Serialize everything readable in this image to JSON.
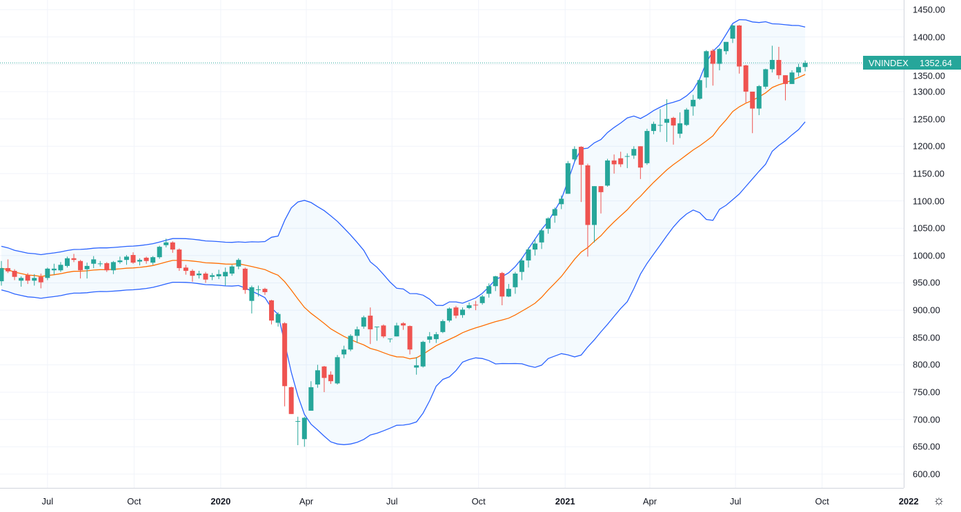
{
  "symbol": "VNINDEX",
  "last_price": "1352.64",
  "colors": {
    "up": "#26a69a",
    "down": "#ef5350",
    "bands": "#2962ff",
    "basis": "#ff6d00",
    "band_fill": "#2196f3",
    "grid": "#f0f3fa",
    "price_line": "#26a69a"
  },
  "icons": {
    "settings": "gear-icon"
  },
  "chart_data": {
    "type": "candlestick",
    "interval": "weekly",
    "indicator": {
      "name": "Bollinger Bands",
      "period": 20,
      "stddev": 2
    },
    "ylim": [
      580,
      1460
    ],
    "y_ticks": [
      "1450.00",
      "1400.00",
      "1350.00",
      "1300.00",
      "1250.00",
      "1200.00",
      "1150.00",
      "1100.00",
      "1050.00",
      "1000.00",
      "950.00",
      "900.00",
      "850.00",
      "800.00",
      "750.00",
      "700.00",
      "650.00",
      "600.00"
    ],
    "x_ticks": [
      {
        "label": "Jul",
        "date": "2019-07-01",
        "year": false
      },
      {
        "label": "Oct",
        "date": "2019-10-01",
        "year": false
      },
      {
        "label": "2020",
        "date": "2020-01-01",
        "year": true
      },
      {
        "label": "Apr",
        "date": "2020-04-01",
        "year": false
      },
      {
        "label": "Jul",
        "date": "2020-07-01",
        "year": false
      },
      {
        "label": "Oct",
        "date": "2020-10-01",
        "year": false
      },
      {
        "label": "2021",
        "date": "2021-01-01",
        "year": true
      },
      {
        "label": "Apr",
        "date": "2021-04-01",
        "year": false
      },
      {
        "label": "Jul",
        "date": "2021-07-01",
        "year": false
      },
      {
        "label": "Oct",
        "date": "2021-10-01",
        "year": false
      },
      {
        "label": "2022",
        "date": "2022-01-01",
        "year": true
      }
    ],
    "candle_fields": [
      "date",
      "open",
      "high",
      "low",
      "close"
    ],
    "candles": [
      [
        "2019-05-13",
        953,
        990,
        945,
        977
      ],
      [
        "2019-05-20",
        977,
        993,
        968,
        971
      ],
      [
        "2019-05-27",
        972,
        975,
        955,
        961
      ],
      [
        "2019-06-03",
        954,
        962,
        943,
        959
      ],
      [
        "2019-06-10",
        964,
        968,
        948,
        954
      ],
      [
        "2019-06-17",
        954,
        966,
        945,
        959
      ],
      [
        "2019-06-24",
        961,
        967,
        940,
        951
      ],
      [
        "2019-07-01",
        959,
        978,
        955,
        976
      ],
      [
        "2019-07-08",
        973,
        985,
        965,
        976
      ],
      [
        "2019-07-15",
        973,
        988,
        970,
        983
      ],
      [
        "2019-07-22",
        981,
        998,
        978,
        995
      ],
      [
        "2019-07-29",
        995,
        1003,
        988,
        992
      ],
      [
        "2019-08-05",
        990,
        992,
        958,
        973
      ],
      [
        "2019-08-12",
        975,
        987,
        958,
        981
      ],
      [
        "2019-08-19",
        985,
        999,
        977,
        993
      ],
      [
        "2019-08-26",
        985,
        990,
        980,
        985.5
      ],
      [
        "2019-09-02",
        986,
        988,
        970,
        973
      ],
      [
        "2019-09-09",
        973,
        990,
        966,
        988
      ],
      [
        "2019-09-16",
        988,
        998,
        985,
        991
      ],
      [
        "2019-09-23",
        992,
        1001,
        983,
        998
      ],
      [
        "2019-09-30",
        1001,
        1006,
        985,
        987
      ],
      [
        "2019-10-07",
        989,
        995,
        982,
        992
      ],
      [
        "2019-10-14",
        996,
        998,
        985,
        990
      ],
      [
        "2019-10-21",
        987,
        999,
        983,
        997
      ],
      [
        "2019-10-28",
        997,
        1018,
        994,
        1016
      ],
      [
        "2019-11-04",
        1019,
        1031,
        1015,
        1024
      ],
      [
        "2019-11-11",
        1024,
        1026,
        1005,
        1011
      ],
      [
        "2019-11-18",
        1011,
        1013,
        972,
        977
      ],
      [
        "2019-11-25",
        978,
        983,
        965,
        972
      ],
      [
        "2019-12-02",
        972,
        975,
        952,
        963
      ],
      [
        "2019-12-09",
        964,
        972,
        958,
        967
      ],
      [
        "2019-12-16",
        967,
        970,
        950,
        956
      ],
      [
        "2019-12-23",
        961,
        968,
        955,
        964
      ],
      [
        "2019-12-30",
        962,
        974,
        957,
        966
      ],
      [
        "2020-01-06",
        962,
        978,
        945,
        970
      ],
      [
        "2020-01-13",
        967,
        983,
        963,
        980
      ],
      [
        "2020-01-20",
        980,
        995,
        975,
        992
      ],
      [
        "2020-01-27",
        976,
        978,
        930,
        937
      ],
      [
        "2020-02-03",
        917,
        945,
        894,
        942
      ],
      [
        "2020-02-10",
        937,
        945,
        925,
        938
      ],
      [
        "2020-02-17",
        939,
        941,
        928,
        933
      ],
      [
        "2020-02-24",
        918,
        919,
        874,
        881
      ],
      [
        "2020-03-02",
        877,
        896,
        870,
        893
      ],
      [
        "2020-03-09",
        876,
        878,
        724,
        761
      ],
      [
        "2020-03-16",
        759,
        760,
        710,
        710
      ],
      [
        "2020-03-23",
        696,
        705,
        653,
        697
      ],
      [
        "2020-03-30",
        664,
        705,
        650,
        703
      ],
      [
        "2020-04-06",
        716,
        770,
        716,
        759
      ],
      [
        "2020-04-13",
        764,
        800,
        758,
        790
      ],
      [
        "2020-04-20",
        797,
        798,
        750,
        776
      ],
      [
        "2020-04-27",
        782,
        788,
        765,
        770
      ],
      [
        "2020-05-04",
        766,
        818,
        764,
        814
      ],
      [
        "2020-05-11",
        819,
        835,
        812,
        828
      ],
      [
        "2020-05-18",
        828,
        856,
        825,
        853
      ],
      [
        "2020-05-25",
        853,
        870,
        840,
        865
      ],
      [
        "2020-06-01",
        870,
        890,
        866,
        887
      ],
      [
        "2020-06-08",
        890,
        905,
        838,
        865
      ],
      [
        "2020-06-15",
        869,
        870,
        844,
        870
      ],
      [
        "2020-06-22",
        872,
        874,
        849,
        852
      ],
      [
        "2020-06-29",
        847,
        848,
        841,
        848
      ],
      [
        "2020-07-06",
        852,
        877,
        852,
        872
      ],
      [
        "2020-07-13",
        876,
        878,
        864,
        872
      ],
      [
        "2020-07-20",
        871,
        872,
        819,
        828
      ],
      [
        "2020-07-27",
        795,
        814,
        782,
        799
      ],
      [
        "2020-08-03",
        797,
        844,
        795,
        842
      ],
      [
        "2020-08-10",
        846,
        860,
        840,
        852
      ],
      [
        "2020-08-17",
        847,
        860,
        840,
        856
      ],
      [
        "2020-08-24",
        860,
        883,
        858,
        880
      ],
      [
        "2020-08-31",
        881,
        905,
        878,
        903
      ],
      [
        "2020-09-07",
        905,
        908,
        885,
        890
      ],
      [
        "2020-09-14",
        891,
        905,
        886,
        901
      ],
      [
        "2020-09-21",
        904,
        914,
        902,
        909
      ],
      [
        "2020-09-28",
        910,
        917,
        900,
        909
      ],
      [
        "2020-10-05",
        913,
        928,
        910,
        925
      ],
      [
        "2020-10-12",
        930,
        949,
        923,
        944
      ],
      [
        "2020-10-19",
        944,
        963,
        935,
        962
      ],
      [
        "2020-10-26",
        968,
        970,
        909,
        925
      ],
      [
        "2020-11-02",
        925,
        948,
        924,
        939
      ],
      [
        "2020-11-09",
        942,
        970,
        930,
        967
      ],
      [
        "2020-11-16",
        970,
        996,
        955,
        991
      ],
      [
        "2020-11-23",
        991,
        1015,
        978,
        1011
      ],
      [
        "2020-11-30",
        1011,
        1030,
        1000,
        1022
      ],
      [
        "2020-12-07",
        1024,
        1049,
        1012,
        1046
      ],
      [
        "2020-12-14",
        1049,
        1070,
        1040,
        1068
      ],
      [
        "2020-12-21",
        1073,
        1088,
        1060,
        1085
      ],
      [
        "2020-12-28",
        1094,
        1110,
        1085,
        1104
      ],
      [
        "2021-01-04",
        1113,
        1173,
        1113,
        1169
      ],
      [
        "2021-01-11",
        1176,
        1200,
        1172,
        1195
      ],
      [
        "2021-01-18",
        1199,
        1200,
        1098,
        1166
      ],
      [
        "2021-01-25",
        1165,
        1168,
        998,
        1056
      ],
      [
        "2021-02-01",
        1056,
        1127,
        1024,
        1127
      ],
      [
        "2021-02-08",
        1127,
        1127,
        1077,
        1116
      ],
      [
        "2021-02-15",
        1128,
        1177,
        1126,
        1174
      ],
      [
        "2021-02-22",
        1174,
        1185,
        1150,
        1167
      ],
      [
        "2021-03-01",
        1178,
        1190,
        1162,
        1167
      ],
      [
        "2021-03-08",
        1181,
        1187,
        1160,
        1182
      ],
      [
        "2021-03-15",
        1183,
        1200,
        1177,
        1195
      ],
      [
        "2021-03-22",
        1200,
        1200,
        1140,
        1161
      ],
      [
        "2021-03-29",
        1169,
        1232,
        1166,
        1228
      ],
      [
        "2021-04-05",
        1228,
        1245,
        1222,
        1241
      ],
      [
        "2021-04-12",
        1238,
        1268,
        1226,
        1239
      ],
      [
        "2021-04-19",
        1243,
        1286,
        1208,
        1250
      ],
      [
        "2021-04-26",
        1252,
        1254,
        1203,
        1238
      ],
      [
        "2021-05-03",
        1223,
        1262,
        1215,
        1242
      ],
      [
        "2021-05-10",
        1239,
        1270,
        1237,
        1267
      ],
      [
        "2021-05-17",
        1273,
        1294,
        1256,
        1285
      ],
      [
        "2021-05-24",
        1287,
        1322,
        1285,
        1321
      ],
      [
        "2021-05-31",
        1326,
        1376,
        1307,
        1374
      ],
      [
        "2021-06-07",
        1375,
        1378,
        1311,
        1351
      ],
      [
        "2021-06-14",
        1351,
        1380,
        1339,
        1378
      ],
      [
        "2021-06-21",
        1374,
        1391,
        1368,
        1391
      ],
      [
        "2021-06-28",
        1397,
        1422,
        1389,
        1421
      ],
      [
        "2021-07-05",
        1421,
        1422,
        1333,
        1346
      ],
      [
        "2021-07-12",
        1348,
        1349,
        1280,
        1300
      ],
      [
        "2021-07-19",
        1300,
        1300,
        1224,
        1269
      ],
      [
        "2021-07-26",
        1269,
        1312,
        1257,
        1310
      ],
      [
        "2021-08-02",
        1309,
        1342,
        1305,
        1341
      ],
      [
        "2021-08-09",
        1341,
        1384,
        1335,
        1358
      ],
      [
        "2021-08-16",
        1358,
        1382,
        1323,
        1330
      ],
      [
        "2021-08-23",
        1330,
        1330,
        1284,
        1314
      ],
      [
        "2021-08-30",
        1314,
        1339,
        1314,
        1335
      ],
      [
        "2021-09-06",
        1335,
        1351,
        1328,
        1345
      ],
      [
        "2021-09-13",
        1345,
        1357,
        1337,
        1352.64
      ]
    ]
  }
}
